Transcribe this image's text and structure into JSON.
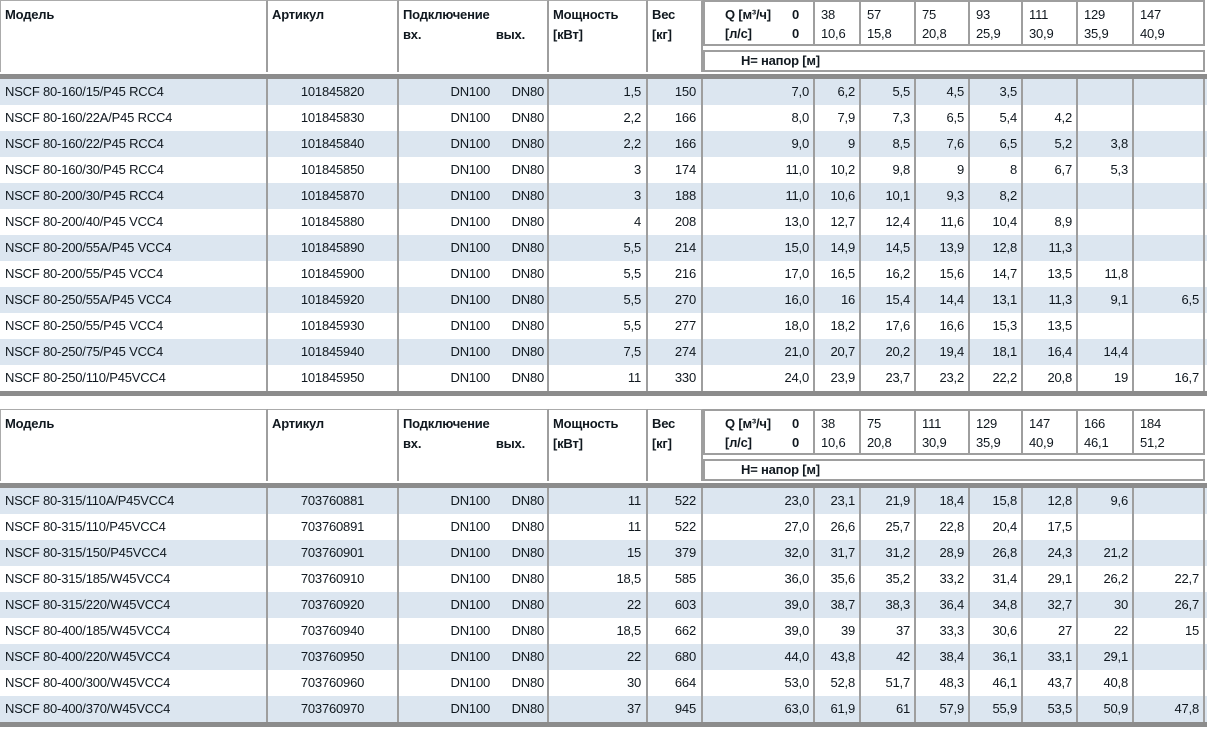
{
  "header": {
    "model": "Модель",
    "article": "Артикул",
    "connection": "Подключение",
    "inlet": "вх.",
    "outlet": "вых.",
    "power_line1": "Мощность",
    "power_line2": "[кВт]",
    "weight_line1": "Вес",
    "weight_line2": "[кг]",
    "q_label": "Q [м³/ч]",
    "q_zero": "0",
    "ls_label": "[л/с]",
    "ls_zero": "0",
    "head_band": "Н= напор [м]"
  },
  "colors": {
    "row_stripe": "#dce6f0",
    "grid_line": "#9e9e9e",
    "heavy_bar": "#8c8c8c",
    "text": "#10181f"
  },
  "tables": [
    {
      "q_m3h": [
        "38",
        "57",
        "75",
        "93",
        "111",
        "129",
        "147"
      ],
      "q_ls": [
        "10,6",
        "15,8",
        "20,8",
        "25,9",
        "30,9",
        "35,9",
        "40,9"
      ],
      "rows": [
        {
          "model": "NSCF 80-160/15/P45 RCC4",
          "article": "101845820",
          "in": "DN100",
          "out": "DN80",
          "power": "1,5",
          "weight": "150",
          "h": [
            "7,0",
            "6,2",
            "5,5",
            "4,5",
            "3,5",
            "",
            "",
            ""
          ]
        },
        {
          "model": "NSCF 80-160/22A/P45 RCC4",
          "article": "101845830",
          "in": "DN100",
          "out": "DN80",
          "power": "2,2",
          "weight": "166",
          "h": [
            "8,0",
            "7,9",
            "7,3",
            "6,5",
            "5,4",
            "4,2",
            "",
            ""
          ]
        },
        {
          "model": "NSCF 80-160/22/P45 RCC4",
          "article": "101845840",
          "in": "DN100",
          "out": "DN80",
          "power": "2,2",
          "weight": "166",
          "h": [
            "9,0",
            "9",
            "8,5",
            "7,6",
            "6,5",
            "5,2",
            "3,8",
            ""
          ]
        },
        {
          "model": "NSCF 80-160/30/P45 RCC4",
          "article": "101845850",
          "in": "DN100",
          "out": "DN80",
          "power": "3",
          "weight": "174",
          "h": [
            "11,0",
            "10,2",
            "9,8",
            "9",
            "8",
            "6,7",
            "5,3",
            ""
          ]
        },
        {
          "model": "NSCF 80-200/30/P45 RCC4",
          "article": "101845870",
          "in": "DN100",
          "out": "DN80",
          "power": "3",
          "weight": "188",
          "h": [
            "11,0",
            "10,6",
            "10,1",
            "9,3",
            "8,2",
            "",
            "",
            ""
          ]
        },
        {
          "model": "NSCF 80-200/40/P45 VCC4",
          "article": "101845880",
          "in": "DN100",
          "out": "DN80",
          "power": "4",
          "weight": "208",
          "h": [
            "13,0",
            "12,7",
            "12,4",
            "11,6",
            "10,4",
            "8,9",
            "",
            ""
          ]
        },
        {
          "model": "NSCF 80-200/55A/P45 VCC4",
          "article": "101845890",
          "in": "DN100",
          "out": "DN80",
          "power": "5,5",
          "weight": "214",
          "h": [
            "15,0",
            "14,9",
            "14,5",
            "13,9",
            "12,8",
            "11,3",
            "",
            ""
          ]
        },
        {
          "model": "NSCF 80-200/55/P45 VCC4",
          "article": "101845900",
          "in": "DN100",
          "out": "DN80",
          "power": "5,5",
          "weight": "216",
          "h": [
            "17,0",
            "16,5",
            "16,2",
            "15,6",
            "14,7",
            "13,5",
            "11,8",
            ""
          ]
        },
        {
          "model": "NSCF 80-250/55A/P45 VCC4",
          "article": "101845920",
          "in": "DN100",
          "out": "DN80",
          "power": "5,5",
          "weight": "270",
          "h": [
            "16,0",
            "16",
            "15,4",
            "14,4",
            "13,1",
            "11,3",
            "9,1",
            "6,5"
          ]
        },
        {
          "model": "NSCF 80-250/55/P45 VCC4",
          "article": "101845930",
          "in": "DN100",
          "out": "DN80",
          "power": "5,5",
          "weight": "277",
          "h": [
            "18,0",
            "18,2",
            "17,6",
            "16,6",
            "15,3",
            "13,5",
            "",
            ""
          ]
        },
        {
          "model": "NSCF 80-250/75/P45 VCC4",
          "article": "101845940",
          "in": "DN100",
          "out": "DN80",
          "power": "7,5",
          "weight": "274",
          "h": [
            "21,0",
            "20,7",
            "20,2",
            "19,4",
            "18,1",
            "16,4",
            "14,4",
            ""
          ]
        },
        {
          "model": "NSCF 80-250/110/P45VCC4",
          "article": "101845950",
          "in": "DN100",
          "out": "DN80",
          "power": "11",
          "weight": "330",
          "h": [
            "24,0",
            "23,9",
            "23,7",
            "23,2",
            "22,2",
            "20,8",
            "19",
            "16,7"
          ]
        }
      ]
    },
    {
      "q_m3h": [
        "38",
        "75",
        "111",
        "129",
        "147",
        "166",
        "184"
      ],
      "q_ls": [
        "10,6",
        "20,8",
        "30,9",
        "35,9",
        "40,9",
        "46,1",
        "51,2"
      ],
      "rows": [
        {
          "model": "NSCF 80-315/110A/P45VCC4",
          "article": "703760881",
          "in": "DN100",
          "out": "DN80",
          "power": "11",
          "weight": "522",
          "h": [
            "23,0",
            "23,1",
            "21,9",
            "18,4",
            "15,8",
            "12,8",
            "9,6",
            ""
          ]
        },
        {
          "model": "NSCF 80-315/110/P45VCC4",
          "article": "703760891",
          "in": "DN100",
          "out": "DN80",
          "power": "11",
          "weight": "522",
          "h": [
            "27,0",
            "26,6",
            "25,7",
            "22,8",
            "20,4",
            "17,5",
            "",
            ""
          ]
        },
        {
          "model": "NSCF 80-315/150/P45VCC4",
          "article": "703760901",
          "in": "DN100",
          "out": "DN80",
          "power": "15",
          "weight": "379",
          "h": [
            "32,0",
            "31,7",
            "31,2",
            "28,9",
            "26,8",
            "24,3",
            "21,2",
            ""
          ]
        },
        {
          "model": "NSCF 80-315/185/W45VCC4",
          "article": "703760910",
          "in": "DN100",
          "out": "DN80",
          "power": "18,5",
          "weight": "585",
          "h": [
            "36,0",
            "35,6",
            "35,2",
            "33,2",
            "31,4",
            "29,1",
            "26,2",
            "22,7"
          ]
        },
        {
          "model": "NSCF 80-315/220/W45VCC4",
          "article": "703760920",
          "in": "DN100",
          "out": "DN80",
          "power": "22",
          "weight": "603",
          "h": [
            "39,0",
            "38,7",
            "38,3",
            "36,4",
            "34,8",
            "32,7",
            "30",
            "26,7"
          ]
        },
        {
          "model": "NSCF 80-400/185/W45VCC4",
          "article": "703760940",
          "in": "DN100",
          "out": "DN80",
          "power": "18,5",
          "weight": "662",
          "h": [
            "39,0",
            "39",
            "37",
            "33,3",
            "30,6",
            "27",
            "22",
            "15"
          ]
        },
        {
          "model": "NSCF 80-400/220/W45VCC4",
          "article": "703760950",
          "in": "DN100",
          "out": "DN80",
          "power": "22",
          "weight": "680",
          "h": [
            "44,0",
            "43,8",
            "42",
            "38,4",
            "36,1",
            "33,1",
            "29,1",
            ""
          ]
        },
        {
          "model": "NSCF 80-400/300/W45VCC4",
          "article": "703760960",
          "in": "DN100",
          "out": "DN80",
          "power": "30",
          "weight": "664",
          "h": [
            "53,0",
            "52,8",
            "51,7",
            "48,3",
            "46,1",
            "43,7",
            "40,8",
            ""
          ]
        },
        {
          "model": "NSCF 80-400/370/W45VCC4",
          "article": "703760970",
          "in": "DN100",
          "out": "DN80",
          "power": "37",
          "weight": "945",
          "h": [
            "63,0",
            "61,9",
            "61",
            "57,9",
            "55,9",
            "53,5",
            "50,9",
            "47,8"
          ]
        }
      ]
    }
  ]
}
